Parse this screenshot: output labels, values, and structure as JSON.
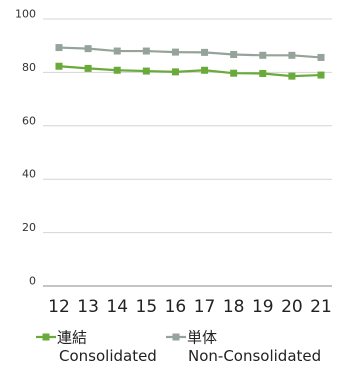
{
  "chart_data": {
    "type": "line",
    "title": "",
    "xlabel": "",
    "ylabel": "",
    "categories": [
      "12",
      "13",
      "14",
      "15",
      "16",
      "17",
      "18",
      "19",
      "20",
      "21"
    ],
    "yticks": [
      "0",
      "20",
      "40",
      "60",
      "80",
      "100"
    ],
    "ylim": [
      0,
      100
    ],
    "grid": true,
    "legend_placement": "bottom",
    "series": [
      {
        "name": "連結",
        "subname": "Consolidated",
        "color": "#6aaa3a",
        "values": [
          82.3,
          81.5,
          80.8,
          80.5,
          80.2,
          80.8,
          79.7,
          79.6,
          78.6,
          79.0
        ]
      },
      {
        "name": "単体",
        "subname": "Non-Consolidated",
        "color": "#96a39a",
        "values": [
          89.3,
          88.9,
          88.0,
          88.0,
          87.6,
          87.5,
          86.7,
          86.4,
          86.4,
          85.6
        ]
      }
    ]
  }
}
